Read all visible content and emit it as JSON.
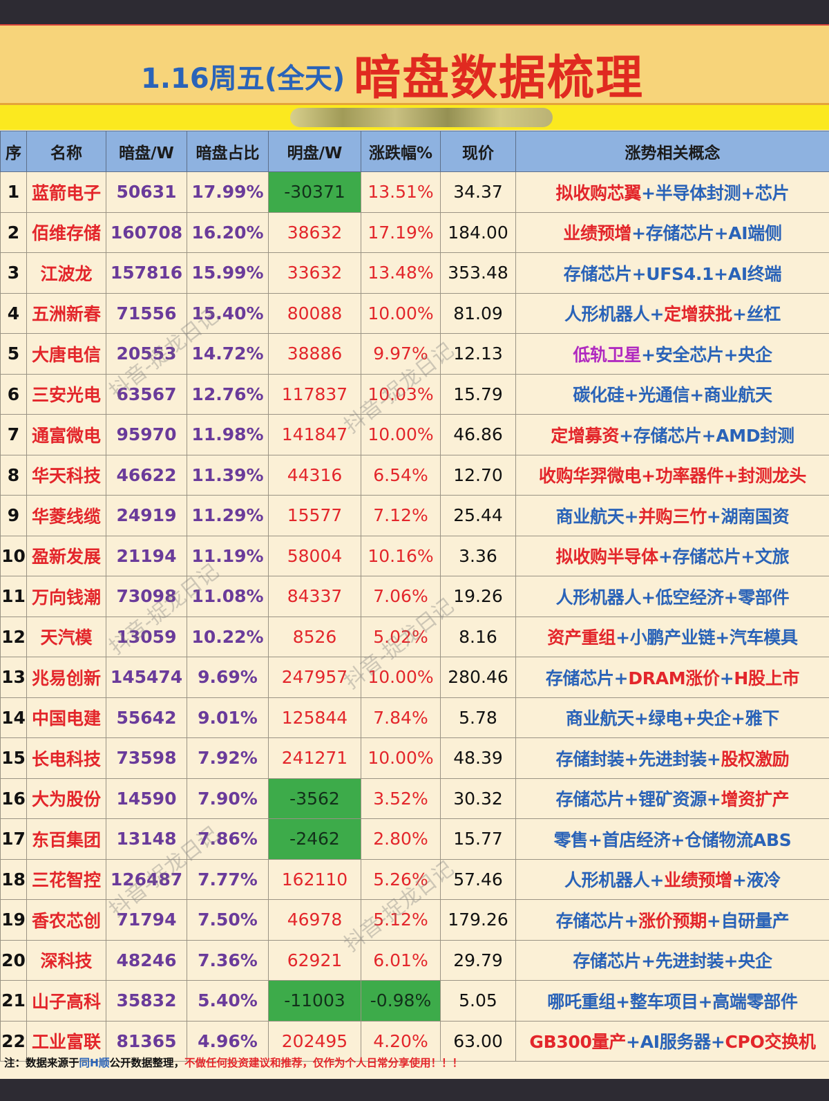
{
  "title": {
    "date_label": "1.16周五(全天)",
    "main": "暗盘数据梳理"
  },
  "headers": [
    "序",
    "名称",
    "暗盘/W",
    "暗盘占比",
    "明盘/W",
    "涨跌幅%",
    "现价",
    "涨势相关概念"
  ],
  "rows": [
    {
      "idx": "1",
      "name": "蓝箭电子",
      "dark": "50631",
      "ratio": "17.99%",
      "mp": "-30371",
      "mp_neg": true,
      "chg": "13.51%",
      "chg_neg": false,
      "price": "34.37",
      "concepts": [
        {
          "t": "拟收购芯翼",
          "c": "red"
        },
        {
          "t": "+",
          "c": "blue"
        },
        {
          "t": "半导体封测",
          "c": "blue"
        },
        {
          "t": "+",
          "c": "blue"
        },
        {
          "t": "芯片",
          "c": "blue"
        }
      ]
    },
    {
      "idx": "2",
      "name": "佰维存储",
      "dark": "160708",
      "ratio": "16.20%",
      "mp": "38632",
      "mp_neg": false,
      "chg": "17.19%",
      "chg_neg": false,
      "price": "184.00",
      "concepts": [
        {
          "t": "业绩预增",
          "c": "red"
        },
        {
          "t": "+",
          "c": "blue"
        },
        {
          "t": "存储芯片",
          "c": "blue"
        },
        {
          "t": "+",
          "c": "blue"
        },
        {
          "t": "AI端侧",
          "c": "blue"
        }
      ]
    },
    {
      "idx": "3",
      "name": "江波龙",
      "dark": "157816",
      "ratio": "15.99%",
      "mp": "33632",
      "mp_neg": false,
      "chg": "13.48%",
      "chg_neg": false,
      "price": "353.48",
      "concepts": [
        {
          "t": "存储芯片",
          "c": "blue"
        },
        {
          "t": "+",
          "c": "blue"
        },
        {
          "t": "UFS4.1",
          "c": "blue"
        },
        {
          "t": "+",
          "c": "blue"
        },
        {
          "t": "AI终端",
          "c": "blue"
        }
      ]
    },
    {
      "idx": "4",
      "name": "五洲新春",
      "dark": "71556",
      "ratio": "15.40%",
      "mp": "80088",
      "mp_neg": false,
      "chg": "10.00%",
      "chg_neg": false,
      "price": "81.09",
      "concepts": [
        {
          "t": "人形机器人",
          "c": "blue"
        },
        {
          "t": "+",
          "c": "blue"
        },
        {
          "t": "定增获批",
          "c": "red"
        },
        {
          "t": "+",
          "c": "blue"
        },
        {
          "t": "丝杠",
          "c": "blue"
        }
      ]
    },
    {
      "idx": "5",
      "name": "大唐电信",
      "dark": "20553",
      "ratio": "14.72%",
      "mp": "38886",
      "mp_neg": false,
      "chg": "9.97%",
      "chg_neg": false,
      "price": "12.13",
      "concepts": [
        {
          "t": "低轨卫星",
          "c": "purple"
        },
        {
          "t": "+",
          "c": "blue"
        },
        {
          "t": "安全芯片",
          "c": "blue"
        },
        {
          "t": "+",
          "c": "blue"
        },
        {
          "t": "央企",
          "c": "blue"
        }
      ]
    },
    {
      "idx": "6",
      "name": "三安光电",
      "dark": "63567",
      "ratio": "12.76%",
      "mp": "117837",
      "mp_neg": false,
      "chg": "10.03%",
      "chg_neg": false,
      "price": "15.79",
      "concepts": [
        {
          "t": "碳化硅",
          "c": "blue"
        },
        {
          "t": "+",
          "c": "blue"
        },
        {
          "t": "光通信",
          "c": "blue"
        },
        {
          "t": "+",
          "c": "blue"
        },
        {
          "t": "商业航天",
          "c": "blue"
        }
      ]
    },
    {
      "idx": "7",
      "name": "通富微电",
      "dark": "95970",
      "ratio": "11.98%",
      "mp": "141847",
      "mp_neg": false,
      "chg": "10.00%",
      "chg_neg": false,
      "price": "46.86",
      "concepts": [
        {
          "t": "定增募资",
          "c": "red"
        },
        {
          "t": "+",
          "c": "blue"
        },
        {
          "t": "存储芯片",
          "c": "blue"
        },
        {
          "t": "+",
          "c": "blue"
        },
        {
          "t": "AMD封测",
          "c": "blue"
        }
      ]
    },
    {
      "idx": "8",
      "name": "华天科技",
      "dark": "46622",
      "ratio": "11.39%",
      "mp": "44316",
      "mp_neg": false,
      "chg": "6.54%",
      "chg_neg": false,
      "price": "12.70",
      "concepts": [
        {
          "t": "收购华羿微电",
          "c": "red"
        },
        {
          "t": "+",
          "c": "red"
        },
        {
          "t": "功率器件",
          "c": "red"
        },
        {
          "t": "+",
          "c": "red"
        },
        {
          "t": "封测龙头",
          "c": "red"
        }
      ]
    },
    {
      "idx": "9",
      "name": "华菱线缆",
      "dark": "24919",
      "ratio": "11.29%",
      "mp": "15577",
      "mp_neg": false,
      "chg": "7.12%",
      "chg_neg": false,
      "price": "25.44",
      "concepts": [
        {
          "t": "商业航天",
          "c": "blue"
        },
        {
          "t": "+",
          "c": "blue"
        },
        {
          "t": "并购三竹",
          "c": "red"
        },
        {
          "t": "+",
          "c": "blue"
        },
        {
          "t": "湖南国资",
          "c": "blue"
        }
      ]
    },
    {
      "idx": "10",
      "name": "盈新发展",
      "dark": "21194",
      "ratio": "11.19%",
      "mp": "58004",
      "mp_neg": false,
      "chg": "10.16%",
      "chg_neg": false,
      "price": "3.36",
      "concepts": [
        {
          "t": "拟收购半导体",
          "c": "red"
        },
        {
          "t": "+",
          "c": "blue"
        },
        {
          "t": "存储芯片",
          "c": "blue"
        },
        {
          "t": "+",
          "c": "blue"
        },
        {
          "t": "文旅",
          "c": "blue"
        }
      ]
    },
    {
      "idx": "11",
      "name": "万向钱潮",
      "dark": "73098",
      "ratio": "11.08%",
      "mp": "84337",
      "mp_neg": false,
      "chg": "7.06%",
      "chg_neg": false,
      "price": "19.26",
      "concepts": [
        {
          "t": "人形机器人",
          "c": "blue"
        },
        {
          "t": "+",
          "c": "blue"
        },
        {
          "t": "低空经济",
          "c": "blue"
        },
        {
          "t": "+",
          "c": "blue"
        },
        {
          "t": "零部件",
          "c": "blue"
        }
      ]
    },
    {
      "idx": "12",
      "name": "天汽模",
      "dark": "13059",
      "ratio": "10.22%",
      "mp": "8526",
      "mp_neg": false,
      "chg": "5.02%",
      "chg_neg": false,
      "price": "8.16",
      "concepts": [
        {
          "t": "资产重组",
          "c": "red"
        },
        {
          "t": "+",
          "c": "blue"
        },
        {
          "t": "小鹏产业链",
          "c": "blue"
        },
        {
          "t": "+",
          "c": "blue"
        },
        {
          "t": "汽车模具",
          "c": "blue"
        }
      ]
    },
    {
      "idx": "13",
      "name": "兆易创新",
      "dark": "145474",
      "ratio": "9.69%",
      "mp": "247957",
      "mp_neg": false,
      "chg": "10.00%",
      "chg_neg": false,
      "price": "280.46",
      "concepts": [
        {
          "t": "存储芯片",
          "c": "blue"
        },
        {
          "t": "+",
          "c": "blue"
        },
        {
          "t": "DRAM涨价",
          "c": "red"
        },
        {
          "t": "+",
          "c": "blue"
        },
        {
          "t": "H股上市",
          "c": "red"
        }
      ]
    },
    {
      "idx": "14",
      "name": "中国电建",
      "dark": "55642",
      "ratio": "9.01%",
      "mp": "125844",
      "mp_neg": false,
      "chg": "7.84%",
      "chg_neg": false,
      "price": "5.78",
      "concepts": [
        {
          "t": "商业航天",
          "c": "blue"
        },
        {
          "t": "+",
          "c": "blue"
        },
        {
          "t": "绿电",
          "c": "blue"
        },
        {
          "t": "+",
          "c": "blue"
        },
        {
          "t": "央企",
          "c": "blue"
        },
        {
          "t": "+",
          "c": "blue"
        },
        {
          "t": "雅下",
          "c": "blue"
        }
      ]
    },
    {
      "idx": "15",
      "name": "长电科技",
      "dark": "73598",
      "ratio": "7.92%",
      "mp": "241271",
      "mp_neg": false,
      "chg": "10.00%",
      "chg_neg": false,
      "price": "48.39",
      "concepts": [
        {
          "t": "存储封装",
          "c": "blue"
        },
        {
          "t": "+",
          "c": "blue"
        },
        {
          "t": "先进封装",
          "c": "blue"
        },
        {
          "t": "+",
          "c": "blue"
        },
        {
          "t": "股权激励",
          "c": "red"
        }
      ]
    },
    {
      "idx": "16",
      "name": "大为股份",
      "dark": "14590",
      "ratio": "7.90%",
      "mp": "-3562",
      "mp_neg": true,
      "chg": "3.52%",
      "chg_neg": false,
      "price": "30.32",
      "concepts": [
        {
          "t": "存储芯片",
          "c": "blue"
        },
        {
          "t": "+",
          "c": "blue"
        },
        {
          "t": "锂矿资源",
          "c": "blue"
        },
        {
          "t": "+",
          "c": "blue"
        },
        {
          "t": "增资扩产",
          "c": "red"
        }
      ]
    },
    {
      "idx": "17",
      "name": "东百集团",
      "dark": "13148",
      "ratio": "7.86%",
      "mp": "-2462",
      "mp_neg": true,
      "chg": "2.80%",
      "chg_neg": false,
      "price": "15.77",
      "concepts": [
        {
          "t": "零售",
          "c": "blue"
        },
        {
          "t": "+",
          "c": "blue"
        },
        {
          "t": "首店经济",
          "c": "blue"
        },
        {
          "t": "+",
          "c": "blue"
        },
        {
          "t": "仓储物流ABS",
          "c": "blue"
        }
      ]
    },
    {
      "idx": "18",
      "name": "三花智控",
      "dark": "126487",
      "ratio": "7.77%",
      "mp": "162110",
      "mp_neg": false,
      "chg": "5.26%",
      "chg_neg": false,
      "price": "57.46",
      "concepts": [
        {
          "t": "人形机器人",
          "c": "blue"
        },
        {
          "t": "+",
          "c": "blue"
        },
        {
          "t": "业绩预增",
          "c": "red"
        },
        {
          "t": "+",
          "c": "blue"
        },
        {
          "t": "液冷",
          "c": "blue"
        }
      ]
    },
    {
      "idx": "19",
      "name": "香农芯创",
      "dark": "71794",
      "ratio": "7.50%",
      "mp": "46978",
      "mp_neg": false,
      "chg": "5.12%",
      "chg_neg": false,
      "price": "179.26",
      "concepts": [
        {
          "t": "存储芯片",
          "c": "blue"
        },
        {
          "t": "+",
          "c": "blue"
        },
        {
          "t": "涨价预期",
          "c": "red"
        },
        {
          "t": "+",
          "c": "blue"
        },
        {
          "t": "自研量产",
          "c": "blue"
        }
      ]
    },
    {
      "idx": "20",
      "name": "深科技",
      "dark": "48246",
      "ratio": "7.36%",
      "mp": "62921",
      "mp_neg": false,
      "chg": "6.01%",
      "chg_neg": false,
      "price": "29.79",
      "concepts": [
        {
          "t": "存储芯片",
          "c": "blue"
        },
        {
          "t": "+",
          "c": "blue"
        },
        {
          "t": "先进封装",
          "c": "blue"
        },
        {
          "t": "+",
          "c": "blue"
        },
        {
          "t": "央企",
          "c": "blue"
        }
      ]
    },
    {
      "idx": "21",
      "name": "山子高科",
      "dark": "35832",
      "ratio": "5.40%",
      "mp": "-11003",
      "mp_neg": true,
      "chg": "-0.98%",
      "chg_neg": true,
      "price": "5.05",
      "concepts": [
        {
          "t": "哪吒重组",
          "c": "blue"
        },
        {
          "t": "+",
          "c": "blue"
        },
        {
          "t": "整车项目",
          "c": "blue"
        },
        {
          "t": "+",
          "c": "blue"
        },
        {
          "t": "高端零部件",
          "c": "blue"
        }
      ]
    },
    {
      "idx": "22",
      "name": "工业富联",
      "dark": "81365",
      "ratio": "4.96%",
      "mp": "202495",
      "mp_neg": false,
      "chg": "4.20%",
      "chg_neg": false,
      "price": "63.00",
      "concepts": [
        {
          "t": "GB300量产",
          "c": "red"
        },
        {
          "t": "+",
          "c": "blue"
        },
        {
          "t": "AI服务器",
          "c": "blue"
        },
        {
          "t": "+",
          "c": "blue"
        },
        {
          "t": "CPO交换机",
          "c": "red"
        }
      ]
    }
  ],
  "note": {
    "prefix": "注：数据来源于",
    "source": "同H顺",
    "mid": "公开数据整理，",
    "disclaimer": "不做任何投资建议和推荐，仅作为个人日常分享使用！！！"
  },
  "watermark": "抖音-捉龙日记",
  "colors": {
    "accent_red": "#e3262b",
    "accent_blue": "#2a63b8",
    "header_blue": "#8eb2e0",
    "negative_green": "#3dab4a",
    "title_yellow": "#f7d47a"
  }
}
